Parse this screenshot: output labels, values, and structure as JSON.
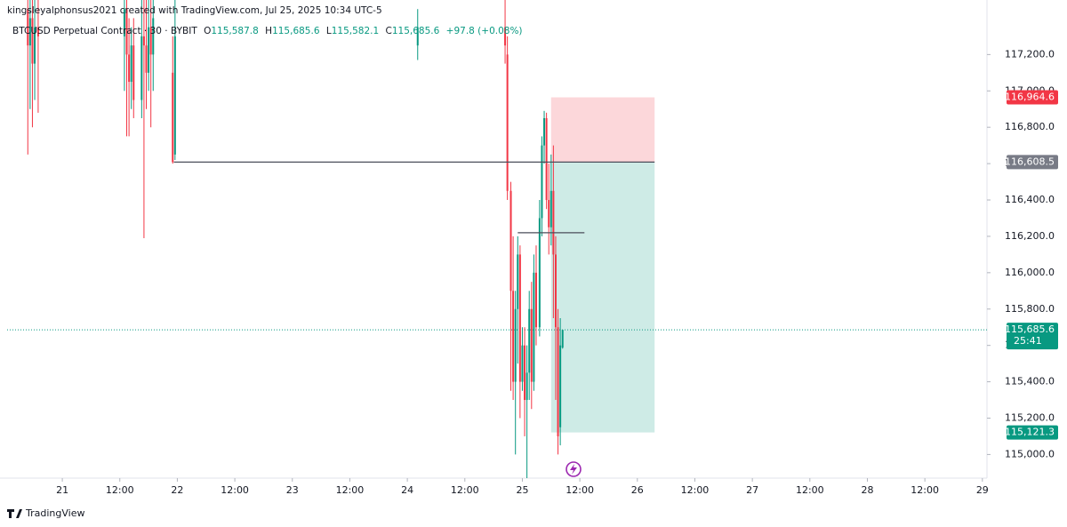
{
  "chart_data": {
    "type": "candlestick",
    "credit": "kingsleyalphonsus2021 created with TradingView.com, Jul 25, 2025 10:34 UTC-5",
    "symbol": "BTCUSD Perpetual Contract · 30 · BYBIT",
    "ohlc": [
      {
        "key": "O",
        "text": "115,587.8"
      },
      {
        "key": "H",
        "text": "115,685.6"
      },
      {
        "key": "L",
        "text": "115,582.1"
      },
      {
        "key": "C",
        "text": "115,685.6"
      }
    ],
    "change": "+97.8 (+0.08%)",
    "brand": "TradingView",
    "up_color": "#089981",
    "down_color": "#f23645",
    "xlim": [
      20.52,
      29.04
    ],
    "ylim": [
      114870,
      117500
    ],
    "xticks": [
      21,
      {
        "value": 21.5,
        "label": "12:00"
      },
      22,
      {
        "value": 22.5,
        "label": "12:00"
      },
      23,
      {
        "value": 23.5,
        "label": "12:00"
      },
      24,
      {
        "value": 24.5,
        "label": "12:00"
      },
      25,
      {
        "value": 25.5,
        "label": "12:00"
      },
      26,
      {
        "value": 26.5,
        "label": "12:00"
      },
      27,
      {
        "value": 27.5,
        "label": "12:00"
      },
      28,
      {
        "value": 28.5,
        "label": "12:00"
      },
      29
    ],
    "yticks": [
      {
        "value": 115000,
        "label": "115,000.0"
      },
      {
        "value": 115200,
        "label": "115,200.0"
      },
      {
        "value": 115400,
        "label": "115,400.0"
      },
      {
        "value": 115600,
        "label": "115,600.0"
      },
      {
        "value": 115800,
        "label": "115,800.0"
      },
      {
        "value": 116000,
        "label": "116,000.0"
      },
      {
        "value": 116200,
        "label": "116,200.0"
      },
      {
        "value": 116400,
        "label": "116,400.0"
      },
      {
        "value": 116600,
        "label": "116,600.0"
      },
      {
        "value": 116800,
        "label": "116,800.0"
      },
      {
        "value": 117000,
        "label": "117,000.0"
      },
      {
        "value": 117200,
        "label": "117,200.0"
      }
    ],
    "x": [
      20.7,
      20.72,
      20.74,
      20.76,
      20.79,
      21.54,
      21.56,
      21.58,
      21.6,
      21.62,
      21.69,
      21.71,
      21.73,
      21.75,
      21.77,
      21.79,
      21.96,
      21.98,
      24.09,
      24.85,
      24.87,
      24.9,
      24.92,
      24.94,
      24.96,
      24.98,
      25.0,
      25.02,
      25.04,
      25.06,
      25.08,
      25.1,
      25.12,
      25.15,
      25.17,
      25.19,
      25.21,
      25.23,
      25.25,
      25.27,
      25.29,
      25.31,
      25.33,
      25.35
    ],
    "open": [
      117450,
      117250,
      117400,
      117150,
      117350,
      117300,
      117450,
      117200,
      117050,
      117250,
      116950,
      117300,
      117250,
      117100,
      117350,
      117200,
      117100,
      116650,
      117250,
      117350,
      117200,
      116450,
      115900,
      115400,
      115800,
      116100,
      115400,
      115600,
      115300,
      115450,
      115800,
      115400,
      116000,
      115700,
      116300,
      116700,
      116850,
      116400,
      116250,
      116450,
      116100,
      115700,
      115150,
      115587.8
    ],
    "high": [
      117600,
      117600,
      117600,
      117550,
      117600,
      117600,
      117600,
      117400,
      117350,
      117400,
      117500,
      117600,
      117500,
      117500,
      117500,
      117500,
      117300,
      117500,
      117450,
      117500,
      117300,
      116500,
      116200,
      115900,
      116200,
      116150,
      115700,
      115700,
      115600,
      115900,
      115950,
      116100,
      116150,
      116400,
      116750,
      116890,
      116880,
      116600,
      116650,
      116700,
      116200,
      115800,
      115750,
      115685.6
    ],
    "low": [
      116650,
      116900,
      116800,
      116950,
      116880,
      117000,
      116750,
      116750,
      116900,
      116850,
      116850,
      116190,
      116900,
      117000,
      116800,
      117000,
      116600,
      116620,
      117170,
      117150,
      116400,
      115350,
      115300,
      115000,
      115500,
      115200,
      115350,
      115100,
      114850,
      115300,
      115250,
      115350,
      115600,
      115650,
      116200,
      116600,
      116350,
      116100,
      116150,
      115750,
      115300,
      115000,
      115050,
      115582.1
    ],
    "close": [
      117250,
      117400,
      117150,
      117350,
      117300,
      117450,
      117200,
      117050,
      117250,
      116950,
      117300,
      117250,
      117100,
      117350,
      117200,
      117400,
      116608.5,
      117300,
      117350,
      117250,
      116450,
      115900,
      115400,
      115800,
      116100,
      115400,
      115600,
      115300,
      115450,
      115800,
      115400,
      116000,
      115700,
      116300,
      116700,
      116850,
      116400,
      116250,
      116450,
      116100,
      115700,
      115100,
      115600,
      115685.6
    ],
    "position": {
      "x": [
        25.25,
        26.15
      ],
      "stop": {
        "value": 116964.6,
        "label": "116,964.6"
      },
      "entry": {
        "value": 116608.5,
        "label": "116,608.5"
      },
      "target": {
        "value": 115121.3,
        "label": "115,121.3"
      }
    },
    "lines": [
      {
        "x": [
          21.97,
          26.15
        ],
        "y": 116608.5
      },
      {
        "x": [
          24.96,
          25.54
        ],
        "y": 116220
      }
    ],
    "last_price": {
      "value": 115685.6,
      "label": "115,685.6",
      "countdown": "25:41"
    }
  }
}
